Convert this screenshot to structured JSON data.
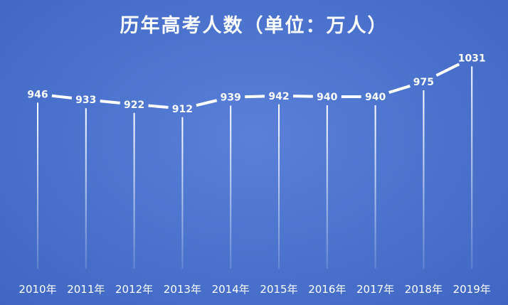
{
  "chart_data": {
    "type": "line",
    "title": "历年高考人数（单位：万人）",
    "categories": [
      "2010年",
      "2011年",
      "2012年",
      "2013年",
      "2014年",
      "2015年",
      "2016年",
      "2017年",
      "2018年",
      "2019年"
    ],
    "series": [
      {
        "values": [
          946,
          933,
          922,
          912,
          939,
          942,
          940,
          940,
          975,
          1031
        ]
      }
    ],
    "xlabel": "",
    "ylabel": "",
    "ylim": [
      800,
      1050
    ],
    "grid": false,
    "legend": "none",
    "colors": {
      "background": "#4d74cf",
      "line": "#ffffff",
      "text": "#ffffff"
    }
  }
}
